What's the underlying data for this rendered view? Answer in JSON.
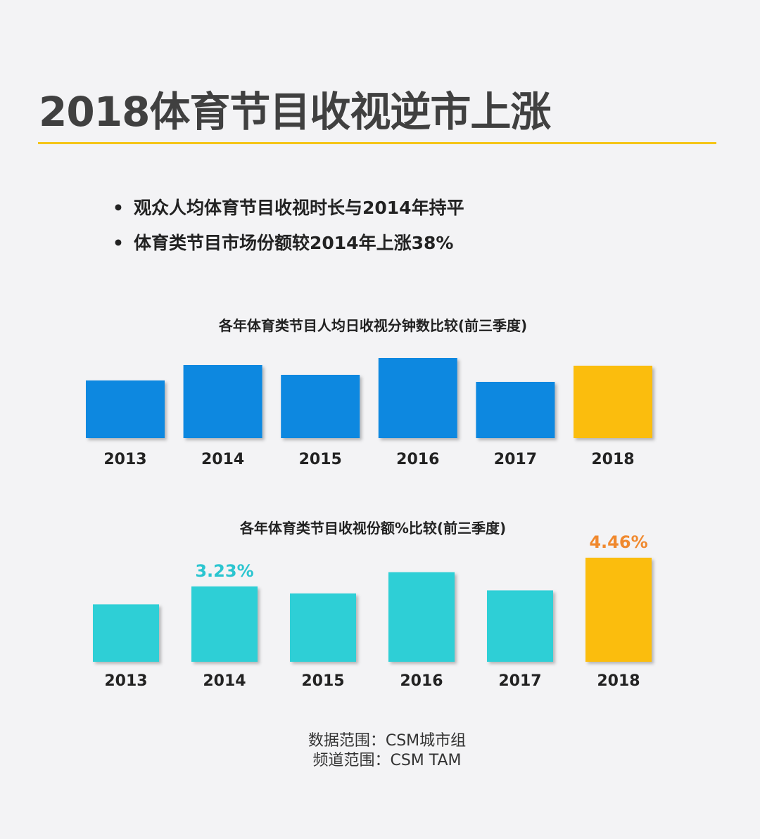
{
  "title": "2018体育节目收视逆市上涨",
  "bullets": [
    "观众人均体育节目收视时长与2014年持平",
    "体育类节目市场份额较2014年上涨38%"
  ],
  "bullet_marker": "•",
  "colors": {
    "blue": "#0e88e0",
    "teal": "#2ecfd6",
    "orange": "#fbbd0a",
    "label_orange": "#f0892e",
    "label_teal": "#2bc5d0",
    "rule": "#f5c518"
  },
  "chart_data": [
    {
      "type": "bar",
      "title": "各年体育类节目人均日收视分钟数比较(前三季度)",
      "categories": [
        "2013",
        "2014",
        "2015",
        "2016",
        "2017",
        "2018"
      ],
      "values": [
        82,
        104,
        90,
        114,
        80,
        103
      ],
      "value_note": "relative heights, no axis shown",
      "ylim": [
        0,
        114
      ],
      "highlight": "2018",
      "grid": false
    },
    {
      "type": "bar",
      "title": "各年体育类节目收视份额%比较(前三季度)",
      "categories": [
        "2013",
        "2014",
        "2015",
        "2016",
        "2017",
        "2018"
      ],
      "values": [
        2.46,
        3.23,
        2.93,
        3.84,
        3.06,
        4.46
      ],
      "data_labels": {
        "2014": "3.23%",
        "2018": "4.46%"
      },
      "ylim": [
        0,
        4.46
      ],
      "highlight": "2018",
      "grid": false
    }
  ],
  "source": {
    "line1": "数据范围：CSM城市组",
    "line2": "频道范围：CSM TAM"
  }
}
